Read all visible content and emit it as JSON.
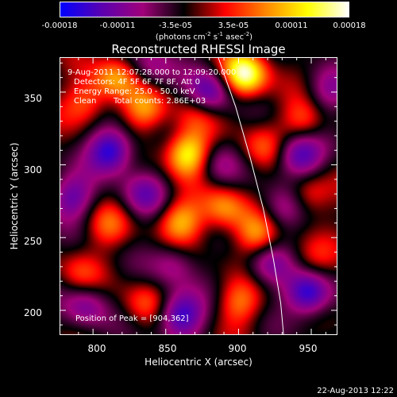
{
  "colorbar": {
    "ticks": [
      "-0.00018",
      "-0.00011",
      "-3.5e-05",
      "3.5e-05",
      "0.00011",
      "0.00018"
    ],
    "unit_prefix": "(photons cm",
    "unit_exp1": "-2",
    "unit_mid1": " s",
    "unit_exp2": "-1",
    "unit_mid2": " asec",
    "unit_exp3": "-2",
    "unit_suffix": ")",
    "colors": [
      "#0000ff",
      "#5a00b0",
      "#a0007a",
      "#000000",
      "#ff0000",
      "#ff8800",
      "#ffff00",
      "#ffffff"
    ]
  },
  "info": {
    "time_range": "9-Aug-2011 12:07:28.000 to 12:09:20.000",
    "detectors": "Detectors: 4F 5F 6F 7F 8F, Att 0",
    "energy": "Energy Range: 25.0 - 50.0 keV",
    "clean": "Clean",
    "total_counts": "Total counts: 2.86E+03",
    "peak": "Position of Peak = [904,362]"
  },
  "chart_data": {
    "type": "heatmap",
    "title": "Reconstructed RHESSI Image",
    "xlabel": "Heliocentric X (arcsec)",
    "ylabel": "Heliocentric Y (arcsec)",
    "xlim": [
      777,
      968
    ],
    "ylim": [
      183,
      374
    ],
    "xticks": [
      800,
      850,
      900,
      950
    ],
    "yticks": [
      200,
      250,
      300,
      350
    ],
    "peak": [
      904,
      362
    ],
    "features": [
      {
        "x": 904,
        "y": 362,
        "v": 1.0
      },
      {
        "x": 865,
        "y": 308,
        "v": 0.85
      },
      {
        "x": 815,
        "y": 360,
        "v": 0.55
      },
      {
        "x": 795,
        "y": 343,
        "v": 0.45
      },
      {
        "x": 835,
        "y": 338,
        "v": 0.5
      },
      {
        "x": 860,
        "y": 262,
        "v": 0.6
      },
      {
        "x": 890,
        "y": 270,
        "v": 0.55
      },
      {
        "x": 912,
        "y": 252,
        "v": 0.55
      },
      {
        "x": 945,
        "y": 330,
        "v": 0.45
      },
      {
        "x": 948,
        "y": 280,
        "v": 0.45
      },
      {
        "x": 810,
        "y": 258,
        "v": 0.35
      },
      {
        "x": 900,
        "y": 205,
        "v": 0.45
      },
      {
        "x": 835,
        "y": 205,
        "v": 0.35
      },
      {
        "x": 915,
        "y": 312,
        "v": 0.35
      },
      {
        "x": 790,
        "y": 225,
        "v": 0.3
      },
      {
        "x": 870,
        "y": 335,
        "v": 0.3
      },
      {
        "x": 950,
        "y": 235,
        "v": 0.3
      },
      {
        "x": 812,
        "y": 310,
        "v": -0.9
      },
      {
        "x": 860,
        "y": 197,
        "v": -0.85
      },
      {
        "x": 948,
        "y": 212,
        "v": -0.9
      },
      {
        "x": 942,
        "y": 307,
        "v": -0.8
      },
      {
        "x": 880,
        "y": 350,
        "v": -0.7
      },
      {
        "x": 785,
        "y": 278,
        "v": -0.6
      },
      {
        "x": 795,
        "y": 203,
        "v": -0.5
      },
      {
        "x": 835,
        "y": 280,
        "v": -0.5
      },
      {
        "x": 920,
        "y": 232,
        "v": -0.5
      },
      {
        "x": 930,
        "y": 270,
        "v": -0.45
      },
      {
        "x": 962,
        "y": 350,
        "v": -0.4
      },
      {
        "x": 855,
        "y": 232,
        "v": -0.4
      },
      {
        "x": 885,
        "y": 300,
        "v": -0.35
      },
      {
        "x": 840,
        "y": 368,
        "v": -0.4
      }
    ],
    "limb_curve": [
      [
        886,
        374
      ],
      [
        898,
        340
      ],
      [
        908,
        305
      ],
      [
        917,
        270
      ],
      [
        924,
        235
      ],
      [
        929,
        205
      ],
      [
        931,
        183
      ]
    ]
  },
  "footer": {
    "date": "22-Aug-2013 12:22"
  }
}
